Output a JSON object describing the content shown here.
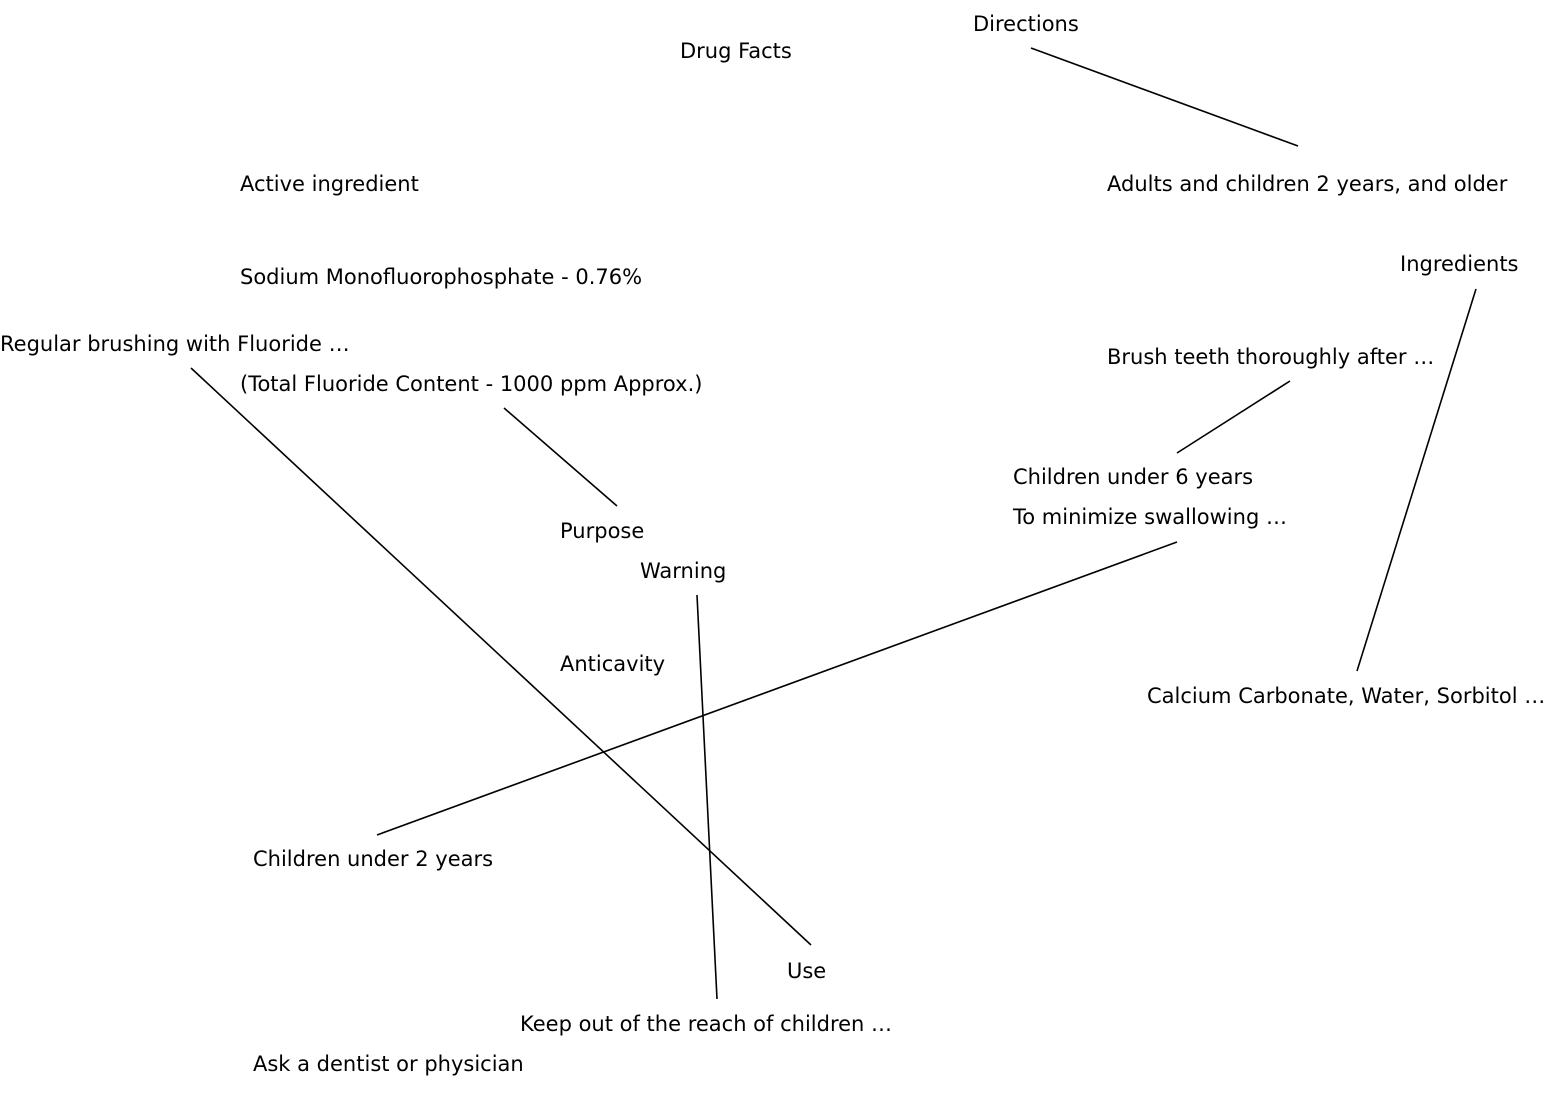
{
  "labels": {
    "drug_facts": "Drug Facts",
    "directions": "Directions",
    "active_ingredient": "Active ingredient",
    "adults_children": "Adults and children 2 years, and older",
    "ingredients": "Ingredients",
    "sodium_mfp": "Sodium Monofluorophosphate - 0.76%",
    "regular_brushing": "Regular brushing with Fluoride …",
    "brush_teeth": "Brush teeth thoroughly after …",
    "total_fluoride": "(Total Fluoride Content - 1000 ppm Approx.)",
    "children_under_6": "Children under 6 years",
    "minimize_swallowing": "To minimize swallowing …",
    "purpose": "Purpose",
    "warning": "Warning",
    "anticavity": "Anticavity",
    "calcium_carbonate": "Calcium Carbonate, Water, Sorbitol …",
    "children_under_2": "Children under 2 years",
    "use": "Use",
    "keep_out": "Keep out of the reach of children …",
    "ask_dentist": "Ask a dentist or physician"
  },
  "connections": [
    {
      "from": "directions",
      "to": "adults_children"
    },
    {
      "from": "ingredients",
      "to": "calcium_carbonate"
    },
    {
      "from": "brush_teeth",
      "to": "children_under_6"
    },
    {
      "from": "total_fluoride",
      "to": "purpose"
    },
    {
      "from": "regular_brushing",
      "to": "use"
    },
    {
      "from": "minimize_swallowing",
      "to": "children_under_2"
    },
    {
      "from": "warning",
      "to": "keep_out"
    }
  ],
  "colors": {
    "text": "#000000",
    "line": "#000000",
    "background": "#ffffff"
  }
}
